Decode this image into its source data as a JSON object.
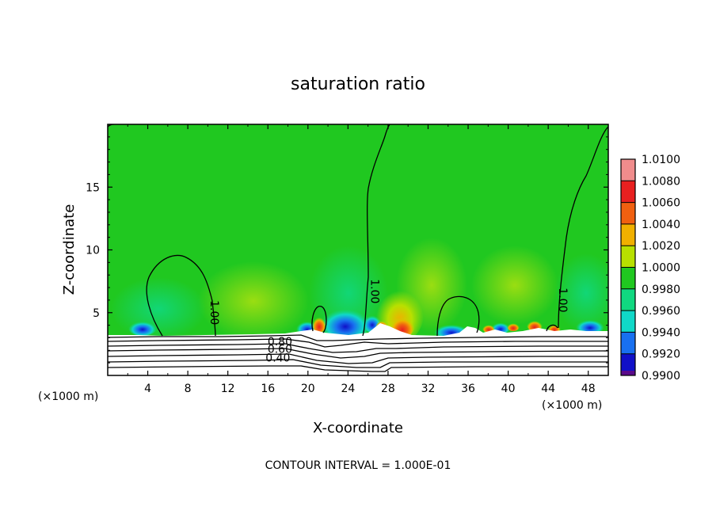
{
  "chart_data": {
    "type": "heatmap",
    "title": "saturation ratio",
    "xlabel": "X-coordinate",
    "ylabel": "Z-coordinate",
    "x_unit_left": "(×1000 m)",
    "x_unit_right": "(×1000 m)",
    "xlim": [
      0,
      50
    ],
    "ylim": [
      0,
      20
    ],
    "x_ticks": [
      4,
      8,
      12,
      16,
      20,
      24,
      28,
      32,
      36,
      40,
      44,
      48
    ],
    "y_ticks": [
      5,
      10,
      15
    ],
    "colorbar": {
      "levels": [
        "1.0100",
        "1.0080",
        "1.0060",
        "1.0040",
        "1.0020",
        "1.0000",
        "0.9980",
        "0.9960",
        "0.9940",
        "0.9920",
        "0.9900"
      ],
      "colors": [
        "#f08c8c",
        "#e82020",
        "#f06010",
        "#f0b000",
        "#b8e000",
        "#20c820",
        "#10d880",
        "#10d8c8",
        "#1870f0",
        "#1010c8",
        "#5a0a8a"
      ]
    },
    "background_value": "1.0000",
    "contour_labels": [
      {
        "text": "1.00",
        "x": 10.3,
        "y": 5.0,
        "rotate": 90
      },
      {
        "text": "1.00",
        "x": 26.3,
        "y": 6.7,
        "rotate": 90
      },
      {
        "text": "1.00",
        "x": 45.1,
        "y": 6.0,
        "rotate": 90
      },
      {
        "text": "0.80",
        "x": 17.2,
        "y": 2.4,
        "rotate": 0
      },
      {
        "text": "0.60",
        "x": 17.2,
        "y": 1.8,
        "rotate": 0
      },
      {
        "text": "0.40",
        "x": 17.0,
        "y": 1.1,
        "rotate": 0
      }
    ],
    "contour_interval_text": "CONTOUR INTERVAL =  1.000E-01"
  }
}
